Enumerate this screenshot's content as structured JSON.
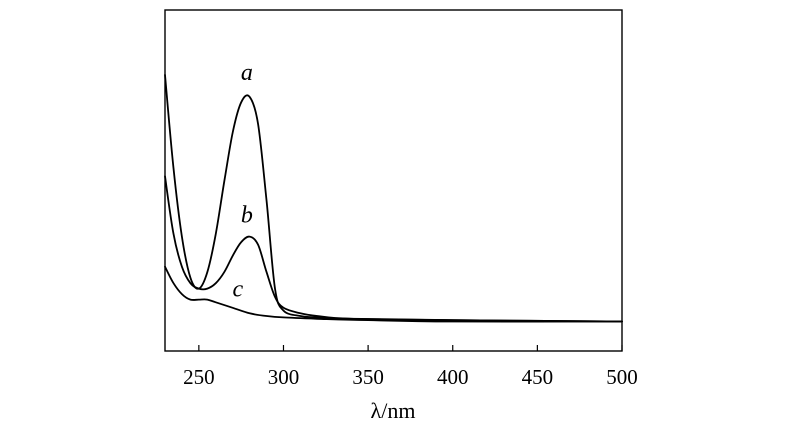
{
  "chart_data": {
    "type": "line",
    "title": "",
    "xlabel": "λ/nm",
    "ylabel": "",
    "xlim": [
      230,
      500
    ],
    "ylim": [
      0,
      1
    ],
    "xticks": [
      250,
      300,
      350,
      400,
      450,
      500
    ],
    "yticks": [],
    "grid": false,
    "legend": "none",
    "series": [
      {
        "name": "a",
        "x": [
          230,
          235,
          240,
          245,
          250,
          255,
          260,
          265,
          270,
          275,
          280,
          285,
          290,
          295,
          300,
          310,
          320,
          340,
          400,
          500
        ],
        "y": [
          0.92,
          0.58,
          0.33,
          0.18,
          0.14,
          0.2,
          0.34,
          0.53,
          0.71,
          0.82,
          0.84,
          0.74,
          0.46,
          0.14,
          0.06,
          0.04,
          0.035,
          0.03,
          0.025,
          0.02
        ]
      },
      {
        "name": "b",
        "x": [
          230,
          235,
          240,
          245,
          250,
          255,
          260,
          265,
          270,
          275,
          280,
          285,
          290,
          295,
          300,
          310,
          320,
          340,
          400,
          500
        ],
        "y": [
          0.55,
          0.34,
          0.22,
          0.16,
          0.14,
          0.14,
          0.16,
          0.2,
          0.26,
          0.31,
          0.33,
          0.3,
          0.2,
          0.11,
          0.07,
          0.05,
          0.04,
          0.03,
          0.025,
          0.02
        ]
      },
      {
        "name": "c",
        "x": [
          230,
          235,
          240,
          245,
          250,
          255,
          260,
          270,
          280,
          290,
          300,
          320,
          350,
          400,
          500
        ],
        "y": [
          0.22,
          0.16,
          0.12,
          0.1,
          0.1,
          0.1,
          0.09,
          0.07,
          0.05,
          0.04,
          0.035,
          0.03,
          0.025,
          0.02,
          0.02
        ]
      }
    ],
    "annotations": [
      {
        "text": "a",
        "x": 279,
        "y": 0.93
      },
      {
        "text": "b",
        "x": 279,
        "y": 0.41
      },
      {
        "text": "c",
        "x": 274,
        "y": 0.14
      }
    ]
  }
}
